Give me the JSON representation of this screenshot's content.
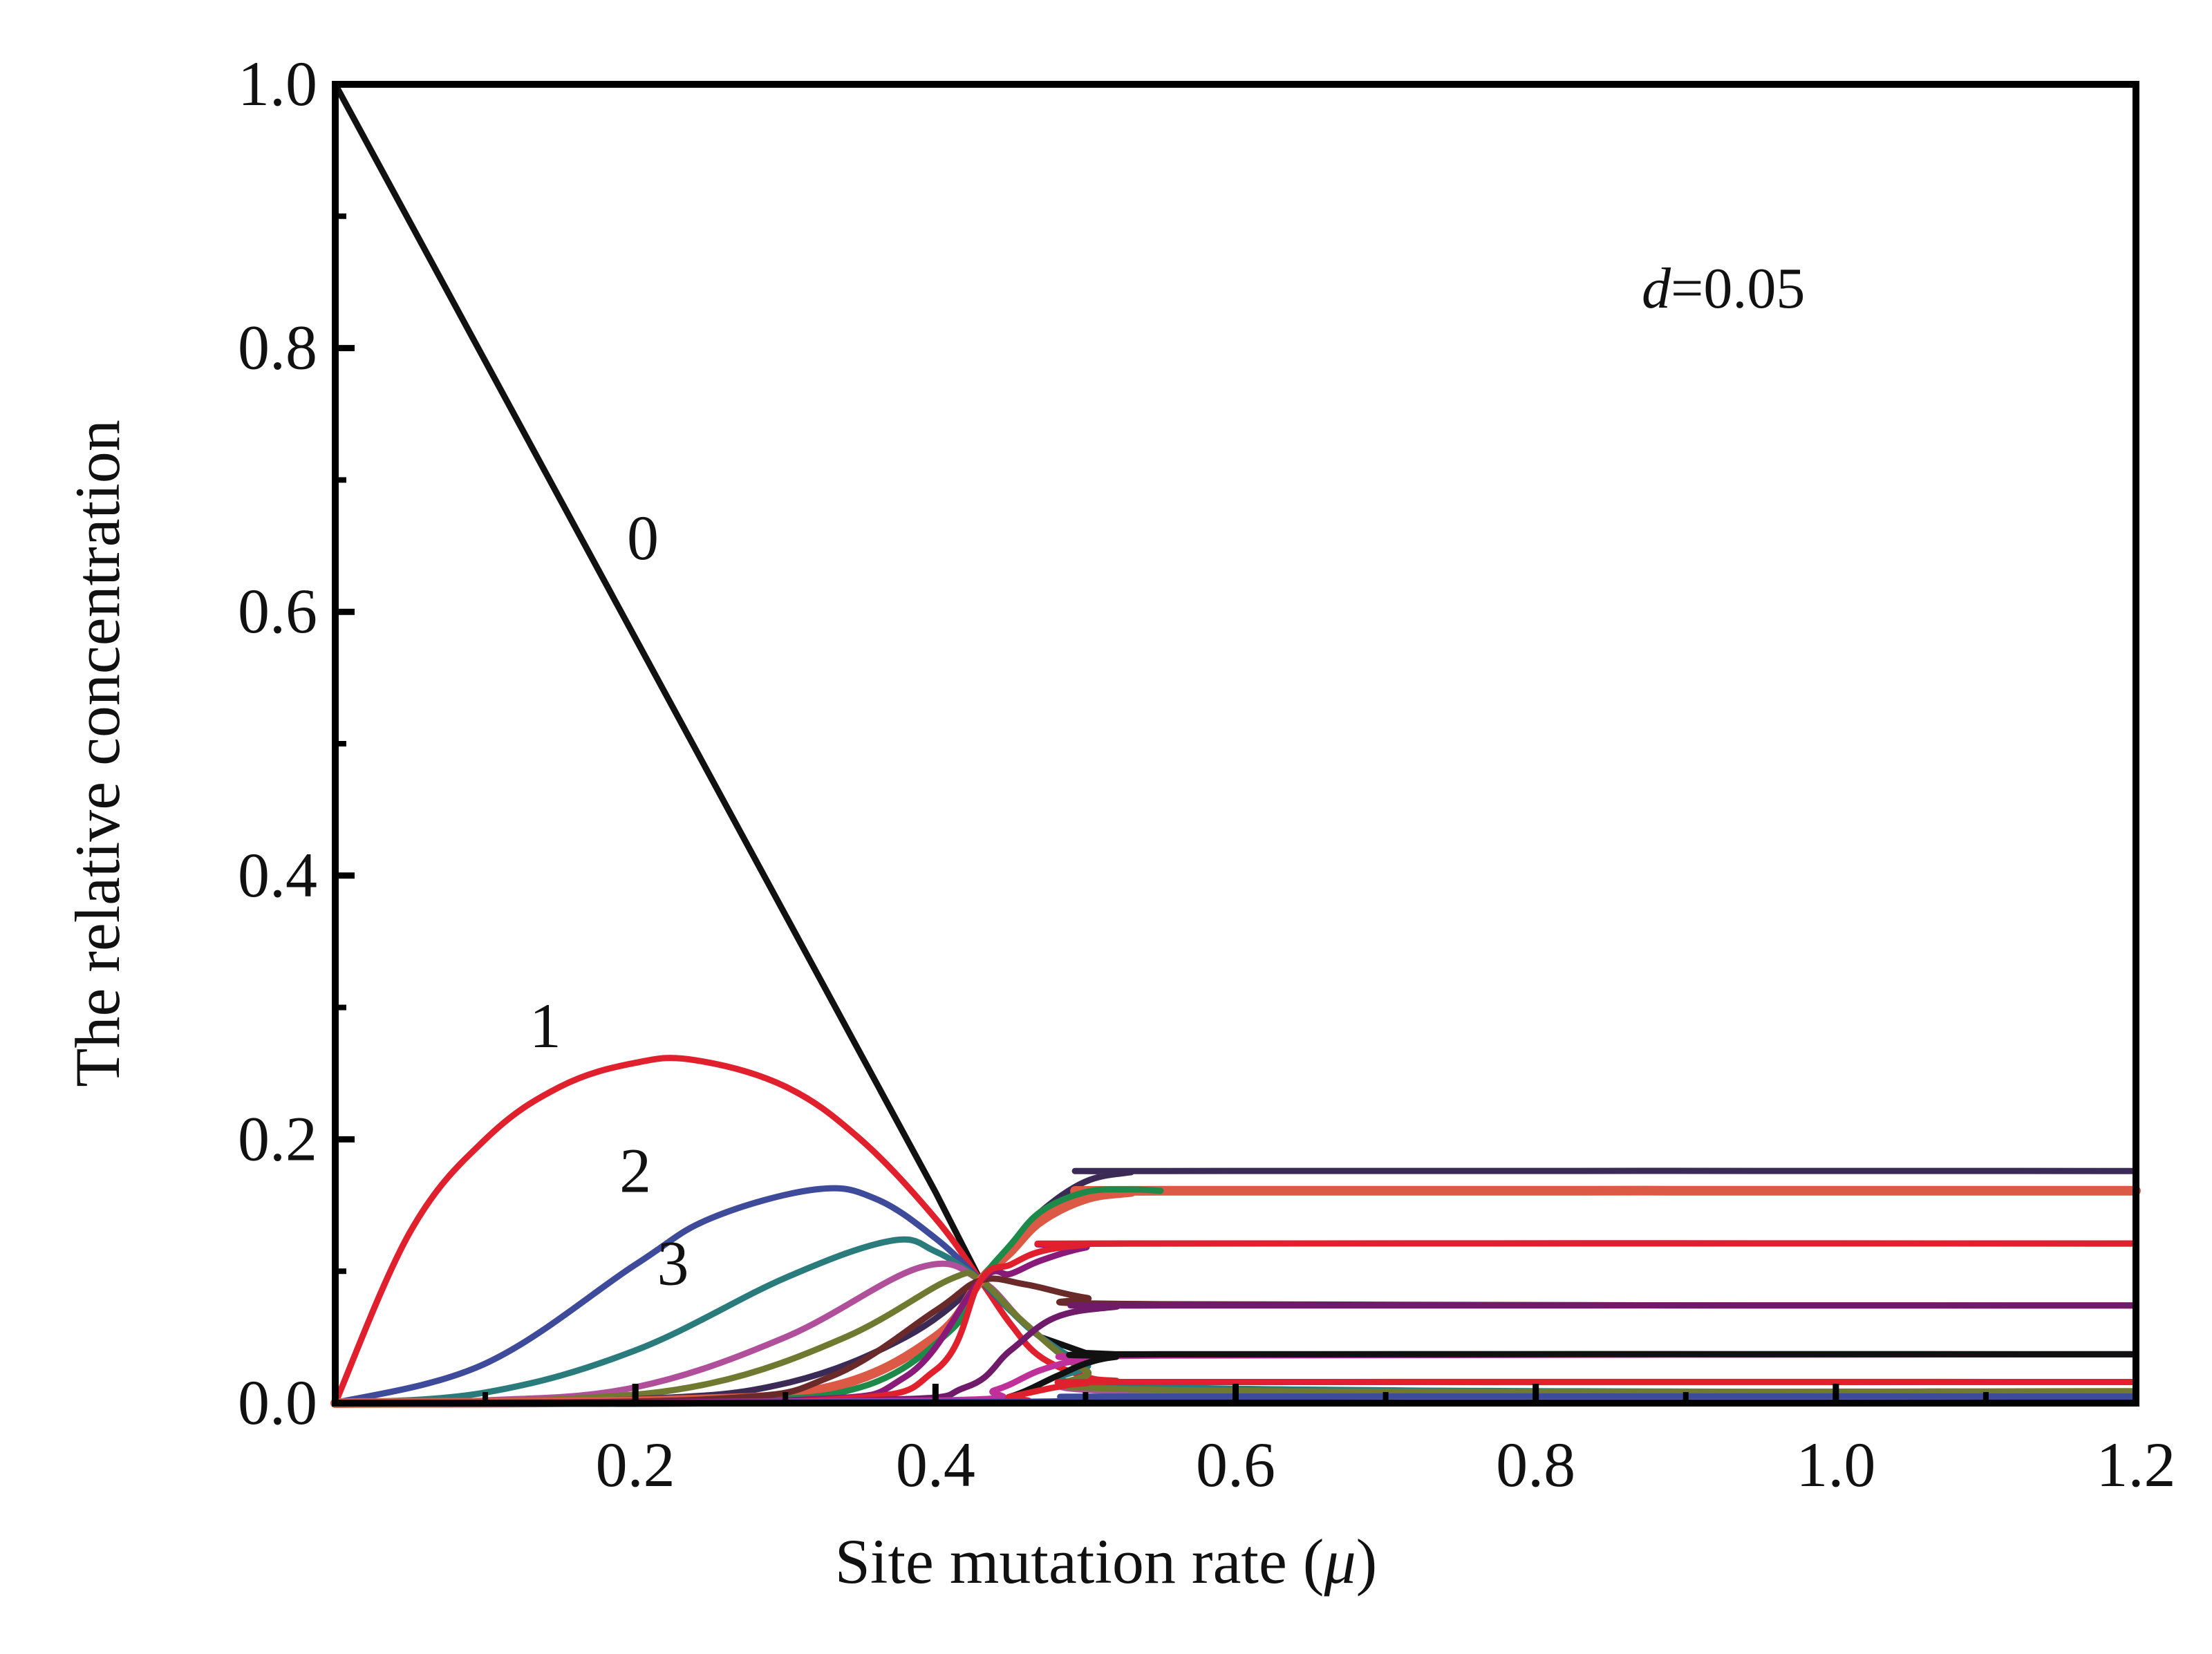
{
  "chart_data": {
    "type": "line",
    "xlabel": "Site mutation rate (",
    "xlabel_symbol": "μ",
    "xlabel_close": ")",
    "ylabel": "The relative concentration",
    "annotation": {
      "var": "d",
      "text": "=0.05"
    },
    "xlim": [
      0.0,
      1.2
    ],
    "ylim": [
      0.0,
      1.0
    ],
    "x_ticks": [
      {
        "value": 0.2,
        "label": "0.2"
      },
      {
        "value": 0.4,
        "label": "0.4"
      },
      {
        "value": 0.6,
        "label": "0.6"
      },
      {
        "value": 0.8,
        "label": "0.8"
      },
      {
        "value": 1.0,
        "label": "1.0"
      },
      {
        "value": 1.2,
        "label": "1.2"
      }
    ],
    "y_ticks": [
      {
        "value": 0.0,
        "label": "0.0"
      },
      {
        "value": 0.2,
        "label": "0.2"
      },
      {
        "value": 0.4,
        "label": "0.4"
      },
      {
        "value": 0.6,
        "label": "0.6"
      },
      {
        "value": 0.8,
        "label": "0.8"
      },
      {
        "value": 1.0,
        "label": "1.0"
      }
    ],
    "grid": false,
    "series": [
      {
        "name": "0",
        "color": "#111111",
        "x": [
          0.0,
          0.1,
          0.2,
          0.3,
          0.4,
          0.43,
          0.45,
          0.47,
          0.5,
          0.52,
          0.55,
          1.2
        ],
        "values": [
          1.0,
          0.79,
          0.58,
          0.37,
          0.16,
          0.093,
          0.07,
          0.05,
          0.038,
          0.037,
          0.037,
          0.037
        ]
      },
      {
        "name": "1",
        "color": "#e0202d",
        "x": [
          0.0,
          0.05,
          0.1,
          0.15,
          0.2,
          0.24,
          0.3,
          0.35,
          0.4,
          0.43,
          0.45,
          0.47,
          0.5,
          0.52,
          0.55,
          1.2
        ],
        "values": [
          0.0,
          0.13,
          0.2,
          0.24,
          0.258,
          0.26,
          0.24,
          0.2,
          0.14,
          0.093,
          0.06,
          0.035,
          0.02,
          0.017,
          0.016,
          0.016
        ]
      },
      {
        "name": "2",
        "color": "#3e4a9a",
        "x": [
          0.0,
          0.1,
          0.2,
          0.25,
          0.32,
          0.36,
          0.4,
          0.43,
          0.45,
          0.47,
          0.5,
          0.55,
          1.2
        ],
        "values": [
          0.0,
          0.03,
          0.105,
          0.14,
          0.162,
          0.155,
          0.125,
          0.093,
          0.07,
          0.05,
          0.03,
          0.012,
          0.005
        ]
      },
      {
        "name": "3",
        "color": "#2a7b7b",
        "x": [
          0.0,
          0.1,
          0.2,
          0.3,
          0.37,
          0.4,
          0.43,
          0.45,
          0.47,
          0.5,
          0.55,
          1.2
        ],
        "values": [
          0.0,
          0.008,
          0.04,
          0.095,
          0.123,
          0.115,
          0.093,
          0.07,
          0.05,
          0.03,
          0.012,
          0.008
        ]
      },
      {
        "name": "",
        "color": "#b0509a",
        "x": [
          0.0,
          0.1,
          0.2,
          0.3,
          0.39,
          0.43,
          0.46,
          0.5,
          0.55,
          1.2
        ],
        "values": [
          0.0,
          0.002,
          0.012,
          0.05,
          0.103,
          0.093,
          0.06,
          0.025,
          0.008,
          0.005
        ]
      },
      {
        "name": "",
        "color": "#6f7a30",
        "x": [
          0.0,
          0.15,
          0.25,
          0.34,
          0.41,
          0.43,
          0.46,
          0.5,
          0.55,
          1.2
        ],
        "values": [
          0.0,
          0.003,
          0.015,
          0.05,
          0.094,
          0.093,
          0.06,
          0.025,
          0.01,
          0.009
        ]
      },
      {
        "name": "",
        "color": "#3a2a55",
        "x": [
          0.0,
          0.2,
          0.3,
          0.38,
          0.43,
          0.45,
          0.47,
          0.5,
          0.53,
          0.55,
          1.2
        ],
        "values": [
          0.0,
          0.003,
          0.015,
          0.05,
          0.093,
          0.12,
          0.145,
          0.168,
          0.175,
          0.176,
          0.176
        ]
      },
      {
        "name": "",
        "color": "#dc5a45",
        "x": [
          0.0,
          0.22,
          0.33,
          0.4,
          0.43,
          0.45,
          0.47,
          0.5,
          0.53,
          0.55,
          1.2
        ],
        "values": [
          0.0,
          0.002,
          0.012,
          0.05,
          0.093,
          0.115,
          0.138,
          0.155,
          0.16,
          0.161,
          0.161
        ]
      },
      {
        "name": "",
        "color": "#1e8a4a",
        "x": [
          0.0,
          0.25,
          0.35,
          0.41,
          0.43,
          0.45,
          0.47,
          0.5,
          0.53,
          0.55
        ],
        "values": [
          0.0,
          0.002,
          0.012,
          0.055,
          0.093,
          0.12,
          0.145,
          0.16,
          0.162,
          0.161
        ]
      },
      {
        "name": "",
        "color": "#6a2a2a",
        "x": [
          0.0,
          0.25,
          0.33,
          0.4,
          0.43,
          0.46,
          0.5,
          0.55,
          1.2
        ],
        "values": [
          0.0,
          0.003,
          0.02,
          0.07,
          0.093,
          0.09,
          0.08,
          0.075,
          0.074
        ]
      },
      {
        "name": "",
        "color": "#8a1a7a",
        "x": [
          0.0,
          0.3,
          0.38,
          0.43,
          0.45,
          0.47,
          0.5,
          0.53,
          1.2
        ],
        "values": [
          0.0,
          0.002,
          0.02,
          0.093,
          0.098,
          0.108,
          0.118,
          0.121,
          0.121
        ]
      },
      {
        "name": "",
        "color": "#e0202d",
        "x": [
          0.0,
          0.32,
          0.4,
          0.43,
          0.45,
          0.47,
          0.5,
          0.53,
          1.2
        ],
        "values": [
          0.0,
          0.002,
          0.025,
          0.093,
          0.105,
          0.115,
          0.12,
          0.121,
          0.121
        ]
      },
      {
        "name": "",
        "color": "#701a6a",
        "x": [
          0.0,
          0.35,
          0.42,
          0.45,
          0.48,
          0.52,
          0.55,
          1.2
        ],
        "values": [
          0.0,
          0.002,
          0.012,
          0.04,
          0.065,
          0.073,
          0.074,
          0.074
        ]
      },
      {
        "name": "",
        "color": "#c0309a",
        "x": [
          0.0,
          0.4,
          0.44,
          0.47,
          0.5,
          0.55,
          1.2
        ],
        "values": [
          0.0,
          0.002,
          0.01,
          0.025,
          0.033,
          0.036,
          0.037
        ]
      },
      {
        "name": "",
        "color": "#111111",
        "x": [
          0.0,
          0.42,
          0.45,
          0.48,
          0.5,
          0.52,
          0.55,
          1.2
        ],
        "values": [
          0.0,
          0.0,
          0.005,
          0.02,
          0.03,
          0.035,
          0.037,
          0.037
        ]
      },
      {
        "name": "",
        "color": "#e0202d",
        "x": [
          0.0,
          0.42,
          0.45,
          0.48,
          0.5,
          0.55,
          1.2
        ],
        "values": [
          0.0,
          0.0,
          0.005,
          0.012,
          0.015,
          0.016,
          0.016
        ]
      },
      {
        "name": "",
        "color": "#3e4a9a",
        "x": [
          0.0,
          0.45,
          0.5,
          0.55,
          1.2
        ],
        "values": [
          0.0,
          0.001,
          0.004,
          0.005,
          0.005
        ]
      }
    ],
    "curve_labels": [
      {
        "text": "0",
        "x": 0.205,
        "y": 0.64
      },
      {
        "text": "1",
        "x": 0.14,
        "y": 0.27
      },
      {
        "text": "2",
        "x": 0.2,
        "y": 0.16
      },
      {
        "text": "3",
        "x": 0.225,
        "y": 0.09
      }
    ]
  }
}
